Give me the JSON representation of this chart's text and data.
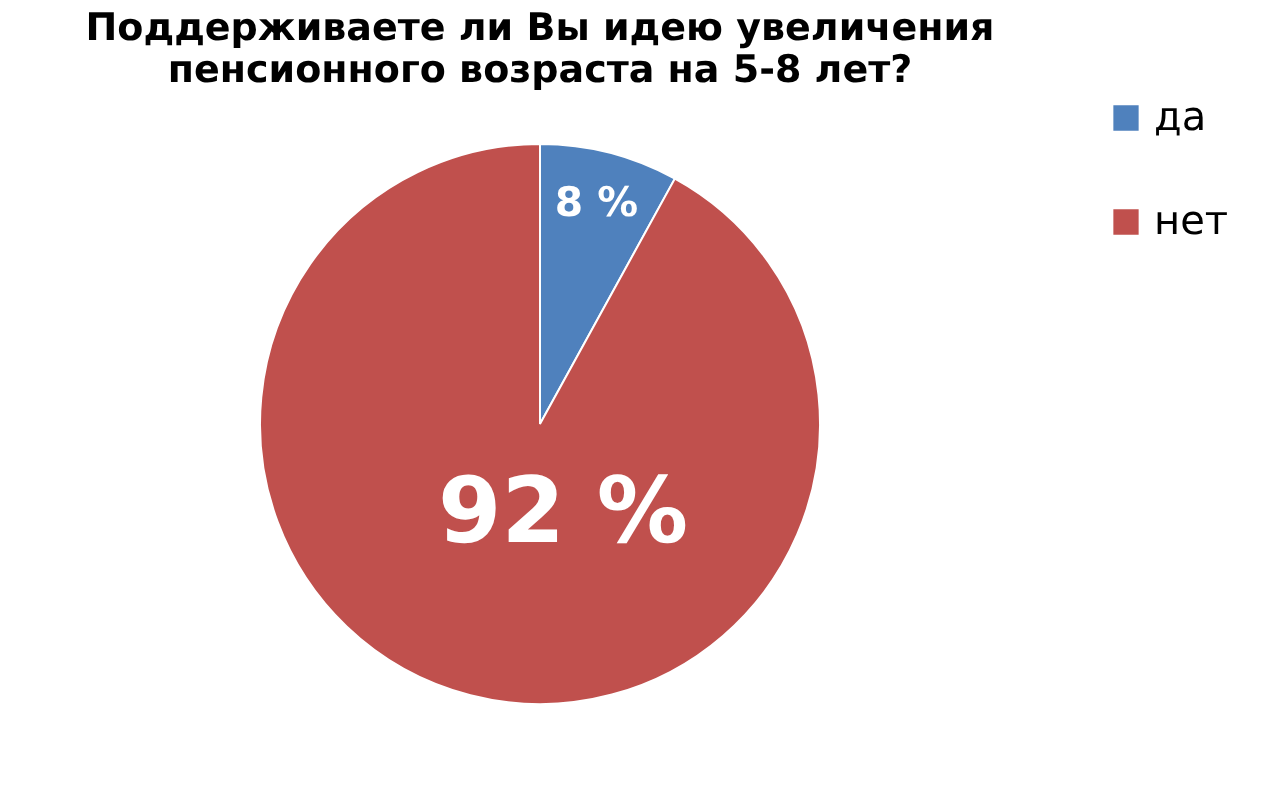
{
  "chart_data": {
    "type": "pie",
    "title": [
      "Поддерживаете ли Вы идею увеличения",
      "пенсионного возраста на 5-8 лет?"
    ],
    "categories": [
      "да",
      "нет"
    ],
    "values": [
      8,
      92
    ],
    "colors": [
      "#4f81bd",
      "#c0504d"
    ],
    "value_labels": [
      "8 %",
      "92 %"
    ],
    "legend": "right"
  }
}
